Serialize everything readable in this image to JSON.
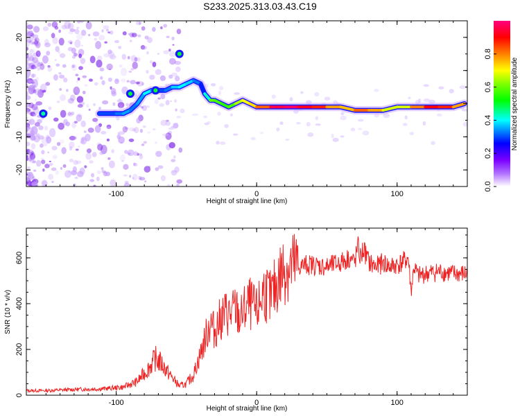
{
  "title": "S233.2025.313.03.43.C19",
  "chart_data": [
    {
      "type": "heatmap",
      "xlabel": "Height of straight line (km)",
      "ylabel": "Frequency (Hz)",
      "xlim": [
        -164,
        150
      ],
      "ylim": [
        -25,
        25
      ],
      "xticks": [
        -100,
        0,
        100
      ],
      "yticks": [
        -20,
        -10,
        0,
        10,
        20
      ],
      "colorbar": {
        "label": "Normalized spectral amplitude",
        "range": [
          0.0,
          1.0
        ],
        "ticks": [
          0.0,
          0.2,
          0.4,
          0.6,
          0.8
        ],
        "tick_labels": [
          "0.0",
          "0.2",
          "0.4",
          "0.6",
          "0.8"
        ],
        "colormap": [
          "#ffffff",
          "#8a00ff",
          "#0000ff",
          "#00ffff",
          "#00ff00",
          "#ffff00",
          "#ff8000",
          "#ff0000",
          "#ff0080"
        ]
      },
      "ridge": {
        "x": [
          -112,
          -100,
          -95,
          -90,
          -85,
          -80,
          -75,
          -70,
          -65,
          -60,
          -55,
          -50,
          -45,
          -40,
          -37,
          -33,
          -30,
          -25,
          -20,
          -15,
          -10,
          -5,
          0,
          10,
          20,
          30,
          40,
          50,
          60,
          70,
          80,
          90,
          100,
          110,
          120,
          130,
          140,
          148
        ],
        "y": [
          -3,
          -3,
          -3,
          -2,
          0,
          3,
          4,
          4,
          4,
          5,
          5,
          6,
          7,
          6,
          3,
          1,
          1,
          0,
          -1,
          0,
          1,
          0,
          -1,
          -1,
          -1,
          -1,
          -1,
          -1,
          -1,
          -2,
          -2,
          -2,
          -1,
          -1,
          -1,
          -1,
          -1,
          0
        ],
        "amplitude": [
          0.3,
          0.3,
          0.35,
          0.35,
          0.3,
          0.4,
          0.4,
          0.3,
          0.3,
          0.35,
          0.4,
          0.4,
          0.35,
          0.3,
          0.25,
          0.6,
          0.6,
          0.55,
          0.55,
          0.6,
          0.7,
          0.7,
          0.75,
          0.9,
          1.0,
          0.95,
          0.9,
          0.85,
          0.7,
          0.8,
          0.85,
          0.7,
          0.65,
          0.7,
          0.9,
          0.9,
          0.85,
          0.7
        ]
      },
      "spots": [
        {
          "x": -55,
          "y": 15,
          "amplitude": 0.3
        },
        {
          "x": -152,
          "y": -3,
          "amplitude": 0.25
        },
        {
          "x": -90,
          "y": 3,
          "amplitude": 0.3
        },
        {
          "x": -72,
          "y": 4,
          "amplitude": 0.3
        }
      ]
    },
    {
      "type": "line",
      "xlabel": "Height of straight line (km)",
      "ylabel": "SNR (10 * v/v)",
      "xlim": [
        -164,
        150
      ],
      "ylim": [
        0,
        730
      ],
      "xticks": [
        -100,
        0,
        100
      ],
      "yticks": [
        0,
        200,
        400,
        600
      ],
      "series": [
        {
          "name": "SNR",
          "color": "#ee2222",
          "x": [
            -164,
            -150,
            -130,
            -110,
            -95,
            -85,
            -78,
            -72,
            -68,
            -62,
            -55,
            -50,
            -45,
            -40,
            -36,
            -33,
            -30,
            -26,
            -22,
            -18,
            -15,
            -12,
            -8,
            -5,
            0,
            5,
            10,
            15,
            20,
            25,
            30,
            35,
            40,
            50,
            60,
            66,
            70,
            72,
            74,
            76,
            80,
            85,
            90,
            95,
            100,
            104,
            108,
            110,
            112,
            115,
            120,
            130,
            140,
            150
          ],
          "y": [
            20,
            20,
            25,
            28,
            35,
            60,
            110,
            160,
            140,
            90,
            40,
            50,
            90,
            180,
            260,
            320,
            280,
            330,
            360,
            350,
            380,
            330,
            380,
            400,
            360,
            460,
            420,
            500,
            560,
            560,
            560,
            570,
            570,
            560,
            580,
            600,
            580,
            650,
            600,
            640,
            580,
            560,
            580,
            560,
            570,
            580,
            600,
            450,
            560,
            520,
            530,
            540,
            530,
            530
          ]
        }
      ]
    }
  ]
}
